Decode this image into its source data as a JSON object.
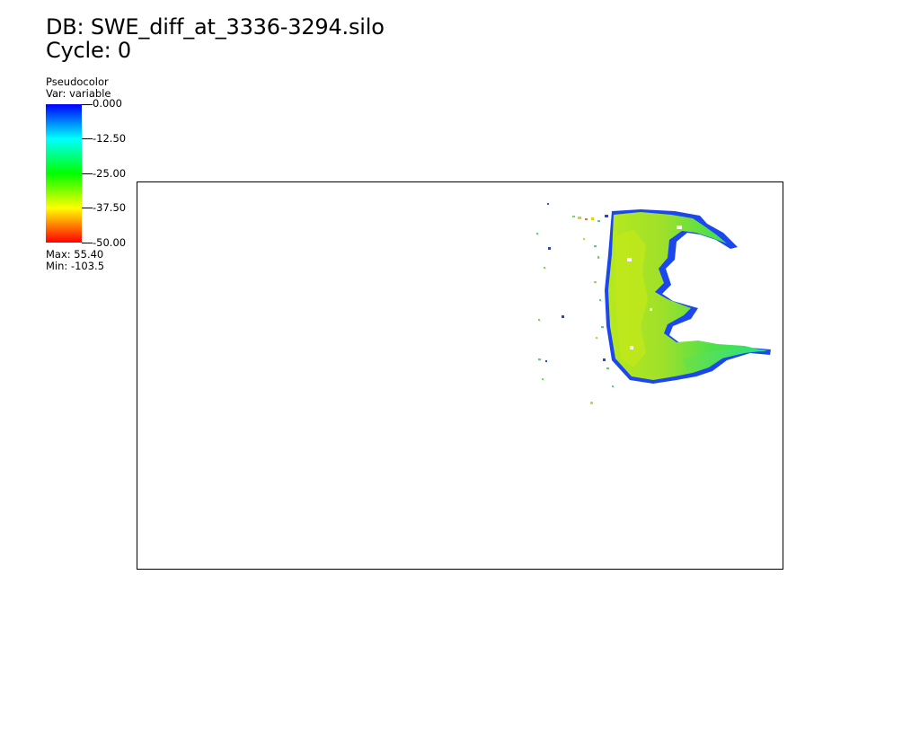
{
  "header": {
    "db_label": "DB: SWE_diff_at_3336-3294.silo",
    "cycle_label": "Cycle: 0"
  },
  "legend": {
    "plot_type": "Pseudocolor",
    "var_label": "Var: variable",
    "ticks": [
      "0.000",
      "-12.50",
      "-25.00",
      "-37.50",
      "-50.00"
    ],
    "max_label": "Max:  55.40",
    "min_label": "Min: -103.5",
    "colormap": [
      "#0000ff",
      "#00ffff",
      "#00ff00",
      "#ffff00",
      "#ff0000"
    ]
  },
  "colors": {
    "frame": "#000000",
    "background": "#ffffff"
  }
}
